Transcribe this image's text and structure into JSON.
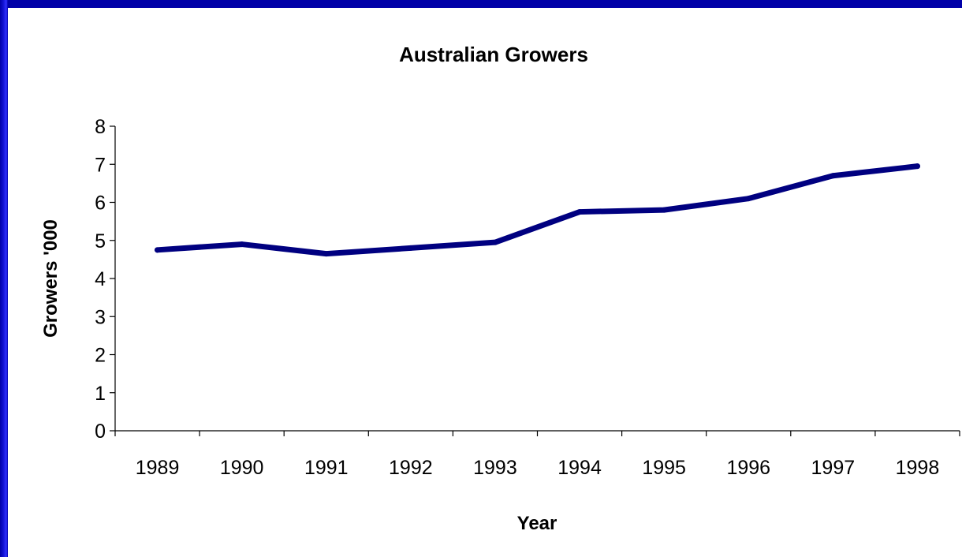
{
  "chart_data": {
    "type": "line",
    "title": "Australian Growers",
    "xlabel": "Year",
    "ylabel": "Growers '000",
    "categories": [
      "1989",
      "1990",
      "1991",
      "1992",
      "1993",
      "1994",
      "1995",
      "1996",
      "1997",
      "1998"
    ],
    "yticks": [
      "0",
      "1",
      "2",
      "3",
      "4",
      "5",
      "6",
      "7",
      "8"
    ],
    "ylim": [
      0,
      8
    ],
    "grid": false,
    "legend": "none",
    "series": [
      {
        "values": [
          4.75,
          4.9,
          4.65,
          4.8,
          4.95,
          5.75,
          5.8,
          6.1,
          6.7,
          6.95
        ],
        "color": "#000080"
      }
    ]
  }
}
